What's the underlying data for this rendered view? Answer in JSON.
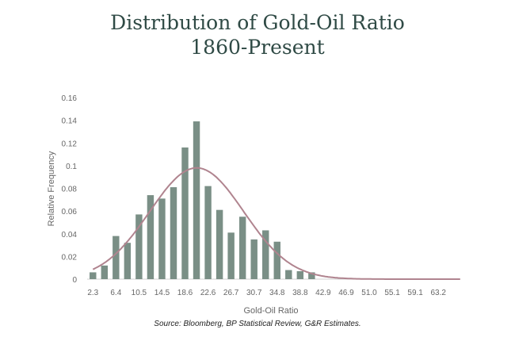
{
  "chart_data": {
    "type": "bar",
    "title": "Distribution of Gold-Oil Ratio",
    "subtitle": "1860-Present",
    "xlabel": "Gold-Oil Ratio",
    "ylabel": "Relative Frequency",
    "ylim": [
      0,
      0.16
    ],
    "yticks": [
      "0",
      "0.02",
      "0.04",
      "0.06",
      "0.08",
      "0.1",
      "0.12",
      "0.14",
      "0.16"
    ],
    "x_tick_labels": [
      "2.3",
      "6.4",
      "10.5",
      "14.5",
      "18.6",
      "22.6",
      "26.7",
      "30.7",
      "34.8",
      "38.8",
      "42.9",
      "46.9",
      "51.0",
      "55.1",
      "59.1",
      "63.2"
    ],
    "bar_values": [
      0.006,
      0.012,
      0.038,
      0.032,
      0.057,
      0.074,
      0.071,
      0.081,
      0.116,
      0.139,
      0.082,
      0.061,
      0.041,
      0.055,
      0.035,
      0.043,
      0.033,
      0.008,
      0.007,
      0.006,
      0,
      0,
      0,
      0,
      0,
      0,
      0,
      0,
      0,
      0,
      0,
      0
    ],
    "bar_color": "#7a8f86",
    "curve_color": "#b0848f",
    "fit_curve": {
      "type": "normal",
      "mean": 20.6,
      "sd": 8.3,
      "peak": 0.098
    },
    "source": "Source: Bloomberg, BP Statistical Review, G&R Estimates."
  }
}
